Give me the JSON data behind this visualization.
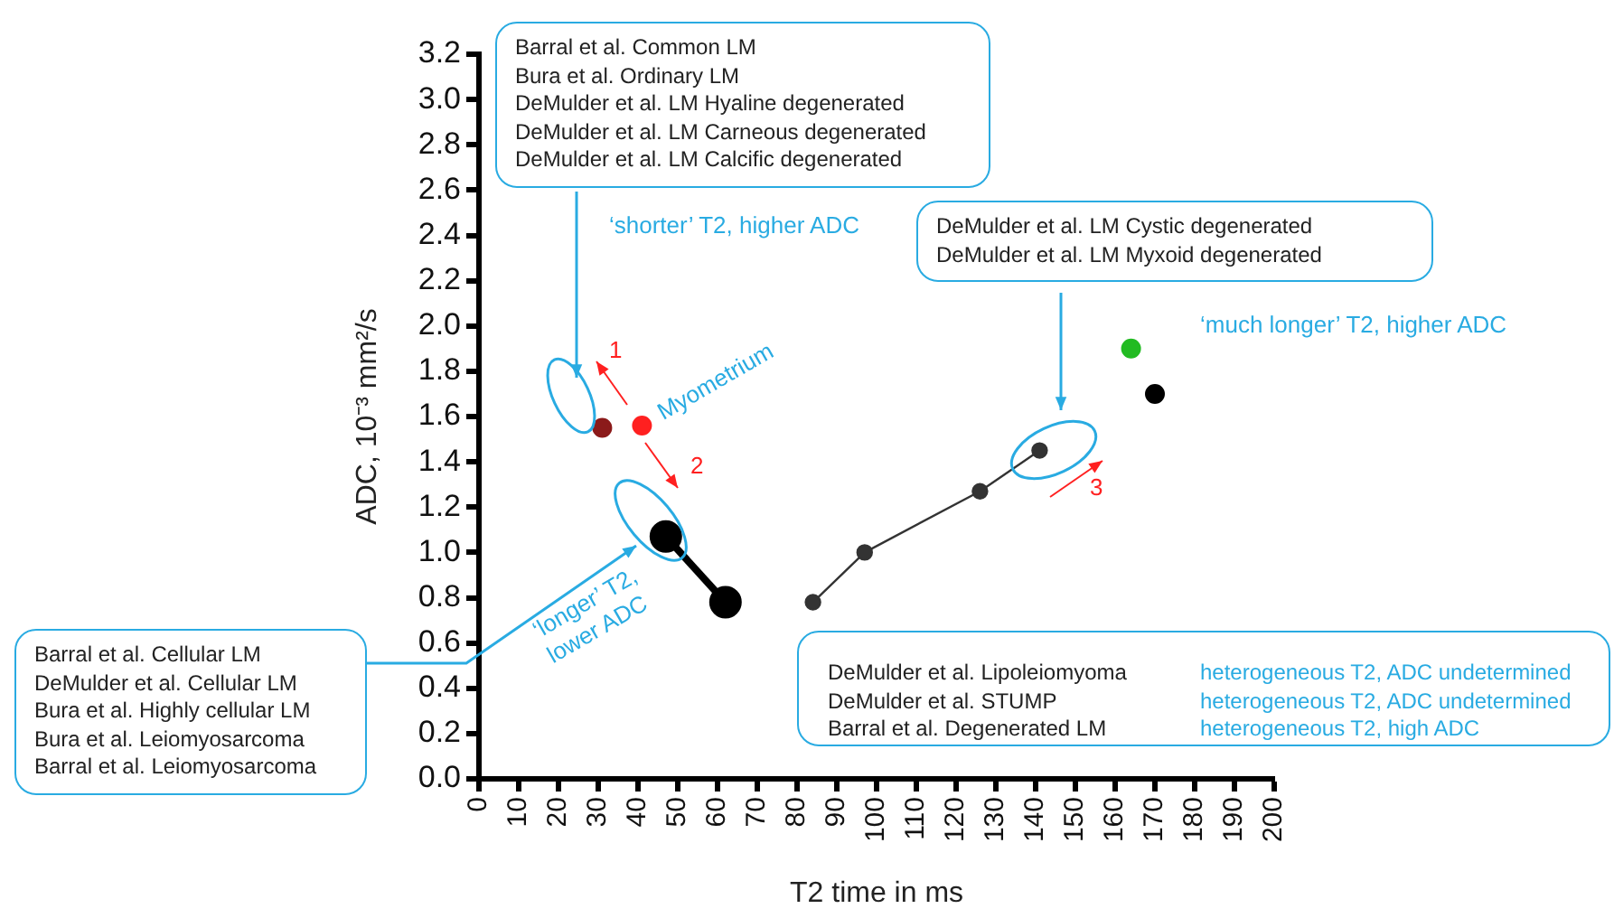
{
  "chart_data": {
    "type": "scatter",
    "xlabel": "T2 time in ms",
    "ylabel": "ADC, 10⁻³ mm²/s",
    "xlim": [
      0,
      200
    ],
    "xticks": [
      0,
      10,
      20,
      30,
      40,
      50,
      60,
      70,
      80,
      90,
      100,
      110,
      120,
      130,
      140,
      150,
      160,
      170,
      180,
      190,
      200
    ],
    "ylim": [
      0,
      3.2
    ],
    "yticks": [
      {
        "value": 0,
        "label": "0.0"
      },
      0.2,
      0.4,
      0.6,
      0.8,
      {
        "value": 1,
        "label": "1.0"
      },
      1.2,
      1.4,
      1.6,
      1.8,
      {
        "value": 2,
        "label": "2.0"
      },
      2.2,
      2.4,
      2.6,
      2.8,
      {
        "value": 3,
        "label": "3.0"
      },
      3.2
    ],
    "legend": false,
    "marker": "circle",
    "series": [
      {
        "color": "#8b1a1a",
        "x": [
          31
        ],
        "values": [
          1.55
        ]
      },
      {
        "color": "#ff2020",
        "x": [
          41
        ],
        "values": [
          1.56
        ]
      },
      {
        "type": "line",
        "color": "#000000",
        "x": [
          47,
          62
        ],
        "values": [
          1.07,
          0.78
        ]
      },
      {
        "type": "line",
        "color": "#333333",
        "x": [
          84,
          97,
          126,
          141
        ],
        "values": [
          0.78,
          1.0,
          1.27,
          1.45
        ]
      },
      {
        "color": "#22bb22",
        "x": [
          164
        ],
        "values": [
          1.9
        ]
      },
      {
        "color": "#000000",
        "x": [
          170
        ],
        "values": [
          1.7
        ]
      }
    ],
    "annotations": [
      "Barral et al. Common LM\nBura et al. Ordinary LM\nDeMulder et al. LM Hyaline degenerated\nDeMulder et al. LM Carneous degenerated\nDeMulder et al. LM Calcific degenerated",
      "DeMulder et al. LM Cystic degenerated\nDeMulder et al. LM Myxoid degenerated",
      "Barral et al. Cellular LM\nDeMulder et al. Cellular LM\nBura et al. Highly cellular LM\nBura et al. Leiomyosarcoma\nBarral et al. Leiomyosarcoma",
      "DeMulder et al. Lipoleiomyoma\nDeMulder et al. STUMP\nBarral et al. Degenerated LM",
      "heterogeneous T2, ADC undetermined\nheterogeneous T2, ADC undetermined\nheterogeneous T2, high ADC",
      "‘shorter’ T2, higher ADC",
      "‘much longer’ T2, higher ADC",
      "‘longer’ T2,\nlower ADC",
      {
        "text": "Myometrium",
        "x": 41,
        "y": 1.56
      },
      "1",
      "2",
      "3"
    ]
  }
}
